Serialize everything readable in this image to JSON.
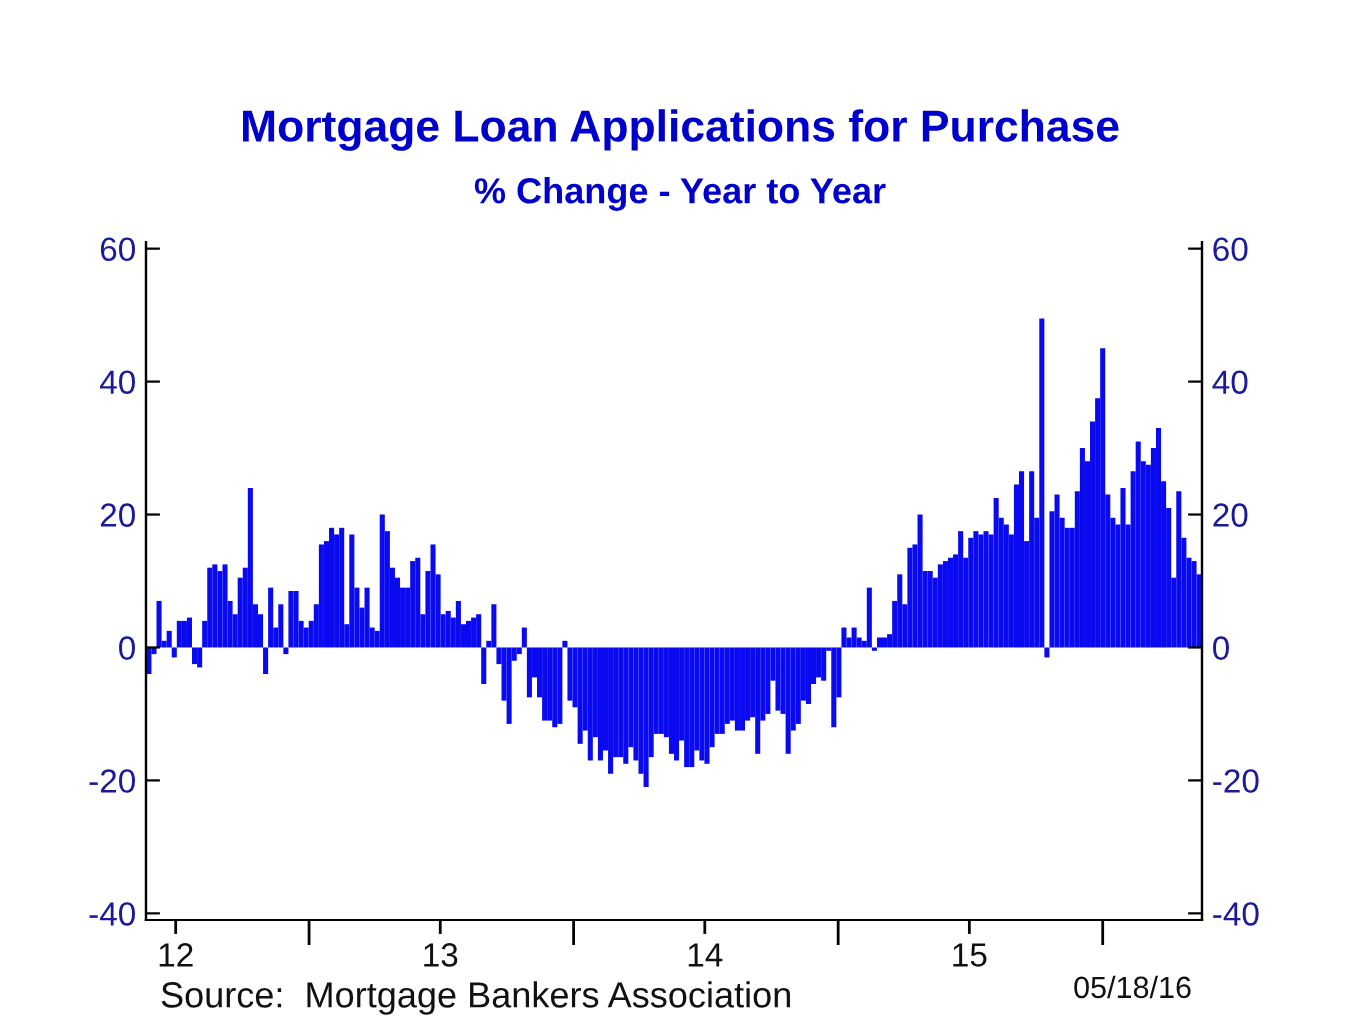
{
  "chart_data": {
    "type": "bar",
    "title": "Mortgage Loan Applications for Purchase",
    "subtitle": "% Change - Year to Year",
    "annotations": [
      "Source:  Mortgage Bankers Association",
      "05/18/16"
    ],
    "x": [
      "2012-05-25",
      "2012-06-01",
      "2012-06-08",
      "2012-06-15",
      "2012-06-22",
      "2012-06-29",
      "2012-07-06",
      "2012-07-13",
      "2012-07-20",
      "2012-07-27",
      "2012-08-03",
      "2012-08-10",
      "2012-08-17",
      "2012-08-24",
      "2012-08-31",
      "2012-09-07",
      "2012-09-14",
      "2012-09-21",
      "2012-09-28",
      "2012-10-05",
      "2012-10-12",
      "2012-10-19",
      "2012-10-26",
      "2012-11-02",
      "2012-11-09",
      "2012-11-16",
      "2012-11-23",
      "2012-11-30",
      "2012-12-07",
      "2012-12-14",
      "2012-12-21",
      "2012-12-28",
      "2013-01-04",
      "2013-01-11",
      "2013-01-18",
      "2013-01-25",
      "2013-02-01",
      "2013-02-08",
      "2013-02-15",
      "2013-02-22",
      "2013-03-01",
      "2013-03-08",
      "2013-03-15",
      "2013-03-22",
      "2013-03-29",
      "2013-04-05",
      "2013-04-12",
      "2013-04-19",
      "2013-04-26",
      "2013-05-03",
      "2013-05-10",
      "2013-05-17",
      "2013-05-24",
      "2013-05-31",
      "2013-06-07",
      "2013-06-14",
      "2013-06-21",
      "2013-06-28",
      "2013-07-05",
      "2013-07-12",
      "2013-07-19",
      "2013-07-26",
      "2013-08-02",
      "2013-08-09",
      "2013-08-16",
      "2013-08-23",
      "2013-08-30",
      "2013-09-06",
      "2013-09-13",
      "2013-09-20",
      "2013-09-27",
      "2013-10-04",
      "2013-10-11",
      "2013-10-18",
      "2013-10-25",
      "2013-11-01",
      "2013-11-08",
      "2013-11-15",
      "2013-11-22",
      "2013-11-29",
      "2013-12-06",
      "2013-12-13",
      "2013-12-20",
      "2013-12-27",
      "2014-01-03",
      "2014-01-10",
      "2014-01-17",
      "2014-01-24",
      "2014-01-31",
      "2014-02-07",
      "2014-02-14",
      "2014-02-21",
      "2014-02-28",
      "2014-03-07",
      "2014-03-14",
      "2014-03-21",
      "2014-03-28",
      "2014-04-04",
      "2014-04-11",
      "2014-04-18",
      "2014-04-25",
      "2014-05-02",
      "2014-05-09",
      "2014-05-16",
      "2014-05-23",
      "2014-05-30",
      "2014-06-06",
      "2014-06-13",
      "2014-06-20",
      "2014-06-27",
      "2014-07-04",
      "2014-07-11",
      "2014-07-18",
      "2014-07-25",
      "2014-08-01",
      "2014-08-08",
      "2014-08-15",
      "2014-08-22",
      "2014-08-29",
      "2014-09-05",
      "2014-09-12",
      "2014-09-19",
      "2014-09-26",
      "2014-10-03",
      "2014-10-10",
      "2014-10-17",
      "2014-10-24",
      "2014-10-31",
      "2014-11-07",
      "2014-11-14",
      "2014-11-21",
      "2014-11-28",
      "2014-12-05",
      "2014-12-12",
      "2014-12-19",
      "2014-12-26",
      "2015-01-02",
      "2015-01-09",
      "2015-01-16",
      "2015-01-23",
      "2015-01-30",
      "2015-02-06",
      "2015-02-13",
      "2015-02-20",
      "2015-02-27",
      "2015-03-06",
      "2015-03-13",
      "2015-03-20",
      "2015-03-27",
      "2015-04-03",
      "2015-04-10",
      "2015-04-17",
      "2015-04-24",
      "2015-05-01",
      "2015-05-08",
      "2015-05-15",
      "2015-05-22",
      "2015-05-29",
      "2015-06-05",
      "2015-06-12",
      "2015-06-19",
      "2015-06-26",
      "2015-07-03",
      "2015-07-10",
      "2015-07-17",
      "2015-07-24",
      "2015-07-31",
      "2015-08-07",
      "2015-08-14",
      "2015-08-21",
      "2015-08-28",
      "2015-09-04",
      "2015-09-11",
      "2015-09-18",
      "2015-09-25",
      "2015-10-02",
      "2015-10-09",
      "2015-10-16",
      "2015-10-23",
      "2015-10-30",
      "2015-11-06",
      "2015-11-13",
      "2015-11-20",
      "2015-11-27",
      "2015-12-04",
      "2015-12-11",
      "2015-12-18",
      "2015-12-25",
      "2016-01-01",
      "2016-01-08",
      "2016-01-15",
      "2016-01-22",
      "2016-01-29",
      "2016-02-05",
      "2016-02-12",
      "2016-02-19",
      "2016-02-26",
      "2016-03-04",
      "2016-03-11",
      "2016-03-18",
      "2016-03-25",
      "2016-04-01",
      "2016-04-08",
      "2016-04-15",
      "2016-04-22",
      "2016-04-29",
      "2016-05-06",
      "2016-05-13"
    ],
    "values": [
      -4,
      -1,
      7,
      1,
      2.5,
      -1.5,
      4,
      4,
      4.5,
      -2.5,
      -3,
      4,
      12,
      12.5,
      11.5,
      12.5,
      7,
      5,
      10.5,
      12,
      24,
      6.5,
      5,
      -4,
      9,
      3,
      6.5,
      -1,
      8.5,
      8.5,
      4,
      3,
      4,
      6.5,
      15.5,
      16,
      18,
      17,
      18,
      3.5,
      17,
      9,
      6,
      9,
      3,
      2.5,
      20,
      17.5,
      12,
      10.5,
      9,
      9,
      13,
      13.5,
      5,
      11.5,
      15.5,
      11,
      5,
      5.5,
      4.5,
      7,
      3.5,
      4,
      4.5,
      5,
      -5.5,
      1,
      6.5,
      -2.5,
      -8,
      -11.5,
      -2,
      -1,
      3,
      -7.5,
      -4.5,
      -7.5,
      -11,
      -11,
      -12,
      -11.5,
      1,
      -8,
      -9,
      -14.5,
      -12.5,
      -17,
      -13.5,
      -17,
      -15.5,
      -19,
      -16.5,
      -16.5,
      -17.5,
      -15,
      -17,
      -19,
      -21,
      -16.5,
      -13,
      -13,
      -13.5,
      -16,
      -17,
      -14,
      -18,
      -18,
      -15.5,
      -17,
      -17.5,
      -15,
      -13,
      -13,
      -11.5,
      -11,
      -12.5,
      -12.5,
      -11,
      -10.5,
      -16,
      -11,
      -10,
      -5,
      -9.5,
      -10,
      -16,
      -12.5,
      -11.5,
      -8,
      -8.5,
      -5.5,
      -4.5,
      -5,
      -0.5,
      -12,
      -7.5,
      3,
      1.5,
      3,
      1.5,
      1,
      9,
      -0.5,
      1.5,
      1.5,
      2,
      7,
      11,
      6.5,
      15,
      15.5,
      20,
      11.5,
      11.5,
      10.5,
      12.5,
      13,
      13.5,
      14,
      17.5,
      13.5,
      16.5,
      17.5,
      17,
      17.5,
      17,
      22.5,
      19.5,
      18.5,
      17,
      24.5,
      26.5,
      16,
      26.5,
      19.5,
      49.5,
      -1.5,
      20.5,
      23,
      19.5,
      18,
      18,
      23.5,
      30,
      28,
      34,
      37.5,
      45,
      23,
      19.5,
      18.5,
      24,
      18.5,
      26.5,
      31,
      28,
      27.5,
      30,
      33,
      25,
      21,
      10.5,
      23.5,
      16.5,
      13.5,
      13,
      11
    ],
    "color": "#0a0af0",
    "xlim": [
      "2012-05-21",
      "2016-05-17"
    ],
    "xticks": [
      {
        "value": "2012-07-01",
        "label": "12"
      },
      {
        "value": "2013-01-01",
        "label": null
      },
      {
        "value": "2013-07-01",
        "label": "13"
      },
      {
        "value": "2014-01-01",
        "label": null
      },
      {
        "value": "2014-07-01",
        "label": "14"
      },
      {
        "value": "2015-01-01",
        "label": null
      },
      {
        "value": "2015-07-01",
        "label": "15"
      },
      {
        "value": "2016-01-01",
        "label": null
      }
    ],
    "ylim": [
      -41,
      61
    ],
    "yticks": [
      -40,
      -20,
      0,
      20,
      40,
      60
    ],
    "y2lim": [
      -41,
      61
    ],
    "y2ticks": [
      -40,
      -20,
      0,
      20,
      40,
      60
    ],
    "grid": false,
    "legend": false
  }
}
